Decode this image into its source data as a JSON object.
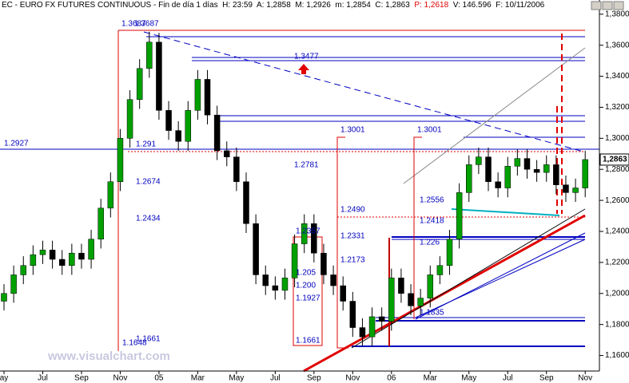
{
  "chart_data": {
    "type": "candlestick",
    "title": "EC - EURO FX FUTURES CONTINUOUS - Fin de día 1 días  H: 23:59  A: 1,2858  M: 1,2926  m: 1,2854  C: 1,2863",
    "title_alert": "P: 1,2618",
    "title_end": "V: 146.596  F: 10/11/2006",
    "watermark": "www.visualchart.com",
    "last_price_label": "1,2863",
    "up_color": "#00a000",
    "down_color": "#000000",
    "categories": [
      "ay",
      null,
      null,
      null,
      "Jul",
      null,
      null,
      null,
      "Sep",
      null,
      null,
      null,
      "Nov",
      null,
      null,
      null,
      "05",
      null,
      null,
      null,
      "Mar",
      null,
      null,
      null,
      "May",
      null,
      null,
      null,
      "Jul",
      null,
      null,
      null,
      "Sep",
      null,
      null,
      null,
      "Nov",
      null,
      null,
      null,
      "06",
      null,
      null,
      null,
      "Mar",
      null,
      null,
      null,
      "May",
      null,
      null,
      null,
      "Jul",
      null,
      null,
      null,
      "Sep",
      null,
      null,
      null,
      "Nov"
    ],
    "open": [
      1.195,
      1.2,
      1.212,
      1.218,
      1.225,
      1.228,
      1.222,
      1.218,
      1.226,
      1.222,
      1.235,
      1.255,
      1.272,
      1.3,
      1.325,
      1.345,
      1.362,
      1.318,
      1.305,
      1.298,
      1.318,
      1.338,
      1.315,
      1.292,
      1.288,
      1.272,
      1.245,
      1.212,
      1.205,
      1.202,
      1.21,
      1.232,
      1.245,
      1.226,
      1.212,
      1.205,
      1.195,
      1.178,
      1.172,
      1.185,
      1.182,
      1.21,
      1.2,
      1.192,
      1.197,
      1.212,
      1.218,
      1.235,
      1.265,
      1.283,
      1.288,
      1.272,
      1.268,
      1.282,
      1.287,
      1.28,
      1.278,
      1.283,
      1.27,
      1.265,
      1.268
    ],
    "high": [
      1.206,
      1.218,
      1.224,
      1.231,
      1.234,
      1.234,
      1.228,
      1.232,
      1.232,
      1.241,
      1.261,
      1.278,
      1.306,
      1.331,
      1.351,
      1.3687,
      1.368,
      1.324,
      1.311,
      1.324,
      1.344,
      1.344,
      1.321,
      1.298,
      1.294,
      1.278,
      1.251,
      1.218,
      1.211,
      1.216,
      1.238,
      1.251,
      1.251,
      1.232,
      1.218,
      1.211,
      1.201,
      1.184,
      1.191,
      1.191,
      1.216,
      1.216,
      1.206,
      1.203,
      1.218,
      1.224,
      1.241,
      1.271,
      1.289,
      1.294,
      1.294,
      1.278,
      1.288,
      1.293,
      1.293,
      1.286,
      1.289,
      1.289,
      1.276,
      1.274,
      1.292
    ],
    "low": [
      1.189,
      1.194,
      1.206,
      1.212,
      1.219,
      1.216,
      1.212,
      1.212,
      1.216,
      1.216,
      1.229,
      1.249,
      1.266,
      1.294,
      1.319,
      1.339,
      1.312,
      1.299,
      1.292,
      1.292,
      1.312,
      1.309,
      1.286,
      1.282,
      1.266,
      1.239,
      1.206,
      1.199,
      1.196,
      1.196,
      1.204,
      1.226,
      1.22,
      1.206,
      1.199,
      1.189,
      1.172,
      1.1661,
      1.166,
      1.176,
      1.176,
      1.194,
      1.186,
      1.186,
      1.191,
      1.206,
      1.212,
      1.229,
      1.259,
      1.277,
      1.266,
      1.262,
      1.262,
      1.276,
      1.274,
      1.272,
      1.272,
      1.264,
      1.259,
      1.259,
      1.262
    ],
    "close": [
      1.2,
      1.212,
      1.218,
      1.225,
      1.228,
      1.222,
      1.218,
      1.226,
      1.222,
      1.235,
      1.255,
      1.272,
      1.3,
      1.325,
      1.345,
      1.362,
      1.318,
      1.305,
      1.298,
      1.318,
      1.338,
      1.315,
      1.292,
      1.288,
      1.272,
      1.245,
      1.212,
      1.205,
      1.202,
      1.21,
      1.232,
      1.245,
      1.226,
      1.212,
      1.205,
      1.195,
      1.178,
      1.172,
      1.185,
      1.182,
      1.21,
      1.2,
      1.192,
      1.197,
      1.212,
      1.218,
      1.235,
      1.265,
      1.283,
      1.288,
      1.272,
      1.268,
      1.282,
      1.287,
      1.28,
      1.278,
      1.283,
      1.27,
      1.265,
      1.268,
      1.2863
    ],
    "last_price": 1.2863,
    "ylim": [
      1.15,
      1.384
    ],
    "yticks": [
      {
        "value": 1.16,
        "label": "1,1600"
      },
      {
        "value": 1.18,
        "label": "1,1800"
      },
      {
        "value": 1.2,
        "label": "1,2000"
      },
      {
        "value": 1.22,
        "label": "1,2200"
      },
      {
        "value": 1.24,
        "label": "1,2400"
      },
      {
        "value": 1.26,
        "label": "1,2600"
      },
      {
        "value": 1.28,
        "label": "1,2800"
      },
      {
        "value": 1.3,
        "label": "1,3000"
      },
      {
        "value": 1.32,
        "label": "1,3200"
      },
      {
        "value": 1.34,
        "label": "1,3400"
      },
      {
        "value": 1.36,
        "label": "1,3600"
      },
      {
        "value": 1.38,
        "label": "1,3800"
      }
    ],
    "annotations": [
      "1.3687",
      "1.3687",
      "1.3477",
      "1.2927",
      "1.291",
      "1.2674",
      "1.2434",
      "1.2781",
      "1.3001",
      "1.3001",
      "1.2490",
      "1.2357",
      "1.2331",
      "1.2173",
      "1.2556",
      "1.2418",
      "1.226",
      "1.205",
      "1.200",
      "1.1927",
      "1.1835",
      "1.1661",
      "1.1661",
      "1.1648"
    ]
  }
}
